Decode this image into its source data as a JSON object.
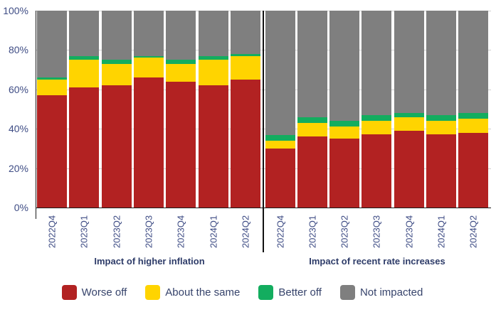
{
  "chart_data": {
    "type": "bar",
    "subtype": "stacked-100-percent",
    "grid": true,
    "legend_position": "bottom",
    "ylim": [
      0,
      100
    ],
    "yticks": [
      {
        "label": "100%",
        "value": 100
      },
      {
        "label": "80%",
        "value": 80
      },
      {
        "label": "60%",
        "value": 60
      },
      {
        "label": "40%",
        "value": 40
      },
      {
        "label": "20%",
        "value": 20
      },
      {
        "label": "0%",
        "value": 0
      }
    ],
    "stack_order_bottom_to_top": [
      "Worse off",
      "About the same",
      "Better off",
      "Not impacted"
    ],
    "groups": [
      {
        "title": "Impact of higher inflation",
        "categories": [
          "2022Q4",
          "2023Q1",
          "2023Q2",
          "2023Q3",
          "2023Q4",
          "2024Q1",
          "2024Q2"
        ],
        "series": [
          {
            "name": "Worse off",
            "color": "#b22222",
            "values": [
              57,
              61,
              62,
              66,
              64,
              62,
              65
            ]
          },
          {
            "name": "About the same",
            "color": "#ffd400",
            "values": [
              8,
              14,
              11,
              10,
              9,
              13,
              12
            ]
          },
          {
            "name": "Better off",
            "color": "#13ad5f",
            "values": [
              1,
              2,
              2,
              1,
              2,
              2,
              1
            ]
          },
          {
            "name": "Not impacted",
            "color": "#7f7f7f",
            "values": [
              34,
              23,
              25,
              23,
              25,
              23,
              22
            ]
          }
        ]
      },
      {
        "title": "Impact of recent rate increases",
        "categories": [
          "2022Q4",
          "2023Q1",
          "2023Q2",
          "2023Q3",
          "2023Q4",
          "2024Q1",
          "2024Q2"
        ],
        "series": [
          {
            "name": "Worse off",
            "color": "#b22222",
            "values": [
              30,
              36,
              35,
              37,
              39,
              37,
              38
            ]
          },
          {
            "name": "About the same",
            "color": "#ffd400",
            "values": [
              4,
              7,
              6,
              7,
              7,
              7,
              7
            ]
          },
          {
            "name": "Better off",
            "color": "#13ad5f",
            "values": [
              3,
              3,
              3,
              3,
              2,
              3,
              3
            ]
          },
          {
            "name": "Not impacted",
            "color": "#7f7f7f",
            "values": [
              63,
              54,
              56,
              53,
              52,
              53,
              52
            ]
          }
        ]
      }
    ]
  },
  "legend": {
    "items": [
      {
        "label": "Worse off",
        "color": "#b22222"
      },
      {
        "label": "About the same",
        "color": "#ffd400"
      },
      {
        "label": "Better off",
        "color": "#13ad5f"
      },
      {
        "label": "Not impacted",
        "color": "#7f7f7f"
      }
    ]
  },
  "colors": {
    "worse_off": "#b22222",
    "about_the_same": "#ffd400",
    "better_off": "#13ad5f",
    "not_impacted": "#7f7f7f",
    "axis_tick_text": "#3f4d85",
    "group_title_text": "#2e3c69",
    "legend_text": "#36436b",
    "gridline": "#d0d0d0",
    "axis_line": "#1a1a1a"
  }
}
